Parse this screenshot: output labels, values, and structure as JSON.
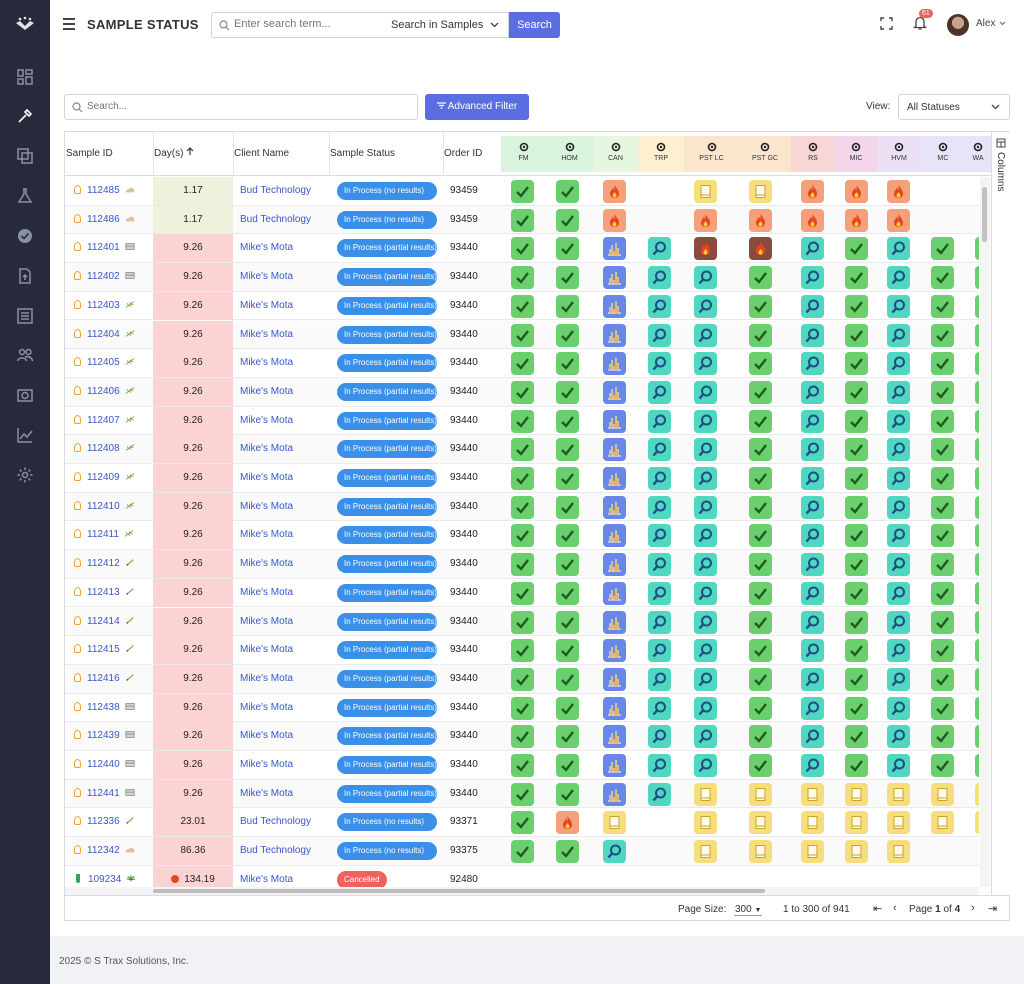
{
  "app": {
    "title": "SAMPLE STATUS"
  },
  "header": {
    "search_placeholder": "Enter search term...",
    "scope_label": "Search in Samples",
    "search_button": "Search",
    "notification_count": "61",
    "user_name": "Alex"
  },
  "sidebar": {
    "items": [
      "dashboard",
      "pipette",
      "copy",
      "flask",
      "badge-check",
      "document-upload",
      "list",
      "users",
      "camera",
      "chart",
      "settings"
    ]
  },
  "toolbar": {
    "search_placeholder": "Search...",
    "advanced_filter": "Advanced Filter",
    "view_label": "View:",
    "view_value": "All Statuses"
  },
  "grid": {
    "headers": {
      "sample_id": "Sample ID",
      "days": "Day(s)",
      "client": "Client Name",
      "status": "Sample Status",
      "order": "Order ID"
    },
    "test_columns": [
      {
        "label": "FM",
        "color": "#d9f3dc"
      },
      {
        "label": "HOM",
        "color": "#d9f3dc"
      },
      {
        "label": "CAN",
        "color": "#e4f5e0"
      },
      {
        "label": "TRP",
        "color": "#fdf0d0"
      },
      {
        "label": "PST LC",
        "color": "#fbe5cc"
      },
      {
        "label": "PST GC",
        "color": "#fbe5cc"
      },
      {
        "label": "RS",
        "color": "#f9d6d6"
      },
      {
        "label": "MIC",
        "color": "#f4d6ea"
      },
      {
        "label": "HVM",
        "color": "#ece0f4"
      },
      {
        "label": "MC",
        "color": "#e6e4f6"
      },
      {
        "label": "WA",
        "color": "#e6e4f6"
      }
    ],
    "columns_label": "Columns",
    "rows": [
      {
        "id": "112485",
        "type": "cloud",
        "days": "1.17",
        "dayclr": "#eef2dc",
        "client": "Bud Technology",
        "status": "In Process (no results)",
        "order": "93459",
        "tiles": [
          "g",
          "g",
          "o",
          "",
          "y",
          "y",
          "o",
          "o",
          "o",
          "",
          ""
        ]
      },
      {
        "id": "112486",
        "type": "cloud",
        "days": "1.17",
        "dayclr": "#eef2dc",
        "client": "Bud Technology",
        "status": "In Process (no results)",
        "order": "93459",
        "tiles": [
          "g",
          "g",
          "o",
          "",
          "o",
          "o",
          "o",
          "o",
          "o",
          "",
          ""
        ]
      },
      {
        "id": "112401",
        "type": "box",
        "days": "9.26",
        "dayclr": "#fcd3d3",
        "client": "Mike's Mota",
        "status": "In Process (partial results)",
        "order": "93440",
        "tiles": [
          "g",
          "g",
          "b",
          "t",
          "d",
          "d",
          "t",
          "g",
          "t",
          "g",
          "g"
        ]
      },
      {
        "id": "112402",
        "type": "box",
        "days": "9.26",
        "dayclr": "#fcd3d3",
        "client": "Mike's Mota",
        "status": "In Process (partial results)",
        "order": "93440",
        "tiles": [
          "g",
          "g",
          "b",
          "t",
          "t",
          "g",
          "t",
          "g",
          "t",
          "g",
          "g"
        ]
      },
      {
        "id": "112403",
        "type": "herb",
        "days": "9.26",
        "dayclr": "#fcd3d3",
        "client": "Mike's Mota",
        "status": "In Process (partial results)",
        "order": "93440",
        "tiles": [
          "g",
          "g",
          "b",
          "t",
          "t",
          "g",
          "t",
          "g",
          "t",
          "g",
          "g"
        ]
      },
      {
        "id": "112404",
        "type": "herb",
        "days": "9.26",
        "dayclr": "#fcd3d3",
        "client": "Mike's Mota",
        "status": "In Process (partial results)",
        "order": "93440",
        "tiles": [
          "g",
          "g",
          "b",
          "t",
          "t",
          "g",
          "t",
          "g",
          "t",
          "g",
          "g"
        ]
      },
      {
        "id": "112405",
        "type": "herb",
        "days": "9.26",
        "dayclr": "#fcd3d3",
        "client": "Mike's Mota",
        "status": "In Process (partial results)",
        "order": "93440",
        "tiles": [
          "g",
          "g",
          "b",
          "t",
          "t",
          "g",
          "t",
          "g",
          "t",
          "g",
          "g"
        ]
      },
      {
        "id": "112406",
        "type": "herb",
        "days": "9.26",
        "dayclr": "#fcd3d3",
        "client": "Mike's Mota",
        "status": "In Process (partial results)",
        "order": "93440",
        "tiles": [
          "g",
          "g",
          "b",
          "t",
          "t",
          "g",
          "t",
          "g",
          "t",
          "g",
          "g"
        ]
      },
      {
        "id": "112407",
        "type": "herb",
        "days": "9.26",
        "dayclr": "#fcd3d3",
        "client": "Mike's Mota",
        "status": "In Process (partial results)",
        "order": "93440",
        "tiles": [
          "g",
          "g",
          "b",
          "t",
          "t",
          "g",
          "t",
          "g",
          "t",
          "g",
          "g"
        ]
      },
      {
        "id": "112408",
        "type": "herb",
        "days": "9.26",
        "dayclr": "#fcd3d3",
        "client": "Mike's Mota",
        "status": "In Process (partial results)",
        "order": "93440",
        "tiles": [
          "g",
          "g",
          "b",
          "t",
          "t",
          "g",
          "t",
          "g",
          "t",
          "g",
          "g"
        ]
      },
      {
        "id": "112409",
        "type": "herb",
        "days": "9.26",
        "dayclr": "#fcd3d3",
        "client": "Mike's Mota",
        "status": "In Process (partial results)",
        "order": "93440",
        "tiles": [
          "g",
          "g",
          "b",
          "t",
          "t",
          "g",
          "t",
          "g",
          "t",
          "g",
          "g"
        ]
      },
      {
        "id": "112410",
        "type": "herb",
        "days": "9.26",
        "dayclr": "#fcd3d3",
        "client": "Mike's Mota",
        "status": "In Process (partial results)",
        "order": "93440",
        "tiles": [
          "g",
          "g",
          "b",
          "t",
          "t",
          "g",
          "t",
          "g",
          "t",
          "g",
          "g"
        ]
      },
      {
        "id": "112411",
        "type": "herb",
        "days": "9.26",
        "dayclr": "#fcd3d3",
        "client": "Mike's Mota",
        "status": "In Process (partial results)",
        "order": "93440",
        "tiles": [
          "g",
          "g",
          "b",
          "t",
          "t",
          "g",
          "t",
          "g",
          "t",
          "g",
          "g"
        ]
      },
      {
        "id": "112412",
        "type": "pen",
        "days": "9.26",
        "dayclr": "#fcd3d3",
        "client": "Mike's Mota",
        "status": "In Process (partial results)",
        "order": "93440",
        "tiles": [
          "g",
          "g",
          "b",
          "t",
          "t",
          "g",
          "t",
          "g",
          "t",
          "g",
          "g"
        ]
      },
      {
        "id": "112413",
        "type": "pen",
        "days": "9.26",
        "dayclr": "#fcd3d3",
        "client": "Mike's Mota",
        "status": "In Process (partial results)",
        "order": "93440",
        "tiles": [
          "g",
          "g",
          "b",
          "t",
          "t",
          "g",
          "t",
          "g",
          "t",
          "g",
          "g"
        ]
      },
      {
        "id": "112414",
        "type": "pen",
        "days": "9.26",
        "dayclr": "#fcd3d3",
        "client": "Mike's Mota",
        "status": "In Process (partial results)",
        "order": "93440",
        "tiles": [
          "g",
          "g",
          "b",
          "t",
          "t",
          "g",
          "t",
          "g",
          "t",
          "g",
          "g"
        ]
      },
      {
        "id": "112415",
        "type": "pen",
        "days": "9.26",
        "dayclr": "#fcd3d3",
        "client": "Mike's Mota",
        "status": "In Process (partial results)",
        "order": "93440",
        "tiles": [
          "g",
          "g",
          "b",
          "t",
          "t",
          "g",
          "t",
          "g",
          "t",
          "g",
          "g"
        ]
      },
      {
        "id": "112416",
        "type": "pen",
        "days": "9.26",
        "dayclr": "#fcd3d3",
        "client": "Mike's Mota",
        "status": "In Process (partial results)",
        "order": "93440",
        "tiles": [
          "g",
          "g",
          "b",
          "t",
          "t",
          "g",
          "t",
          "g",
          "t",
          "g",
          "g"
        ]
      },
      {
        "id": "112438",
        "type": "box",
        "days": "9.26",
        "dayclr": "#fcd3d3",
        "client": "Mike's Mota",
        "status": "In Process (partial results)",
        "order": "93440",
        "tiles": [
          "g",
          "g",
          "b",
          "t",
          "t",
          "g",
          "t",
          "g",
          "t",
          "g",
          "g"
        ]
      },
      {
        "id": "112439",
        "type": "box",
        "days": "9.26",
        "dayclr": "#fcd3d3",
        "client": "Mike's Mota",
        "status": "In Process (partial results)",
        "order": "93440",
        "tiles": [
          "g",
          "g",
          "b",
          "t",
          "t",
          "g",
          "t",
          "g",
          "t",
          "g",
          "g"
        ]
      },
      {
        "id": "112440",
        "type": "box",
        "days": "9.26",
        "dayclr": "#fcd3d3",
        "client": "Mike's Mota",
        "status": "In Process (partial results)",
        "order": "93440",
        "tiles": [
          "g",
          "g",
          "b",
          "t",
          "t",
          "g",
          "t",
          "g",
          "t",
          "g",
          "g"
        ]
      },
      {
        "id": "112441",
        "type": "box",
        "days": "9.26",
        "dayclr": "#fcd3d3",
        "client": "Mike's Mota",
        "status": "In Process (partial results)",
        "order": "93440",
        "tiles": [
          "g",
          "g",
          "b",
          "t",
          "y",
          "y",
          "y",
          "y",
          "y",
          "y",
          "y"
        ]
      },
      {
        "id": "112336",
        "type": "pen",
        "days": "23.01",
        "dayclr": "#fcd3d3",
        "client": "Bud Technology",
        "status": "In Process (no results)",
        "order": "93371",
        "tiles": [
          "g",
          "o",
          "y",
          "",
          "y",
          "y",
          "y",
          "y",
          "y",
          "y",
          "y"
        ]
      },
      {
        "id": "112342",
        "type": "cloud",
        "days": "86.36",
        "dayclr": "#fcd3d3",
        "client": "Bud Technology",
        "status": "In Process (no results)",
        "order": "93375",
        "tiles": [
          "g",
          "g",
          "t",
          "",
          "y",
          "y",
          "y",
          "y",
          "y",
          "",
          ""
        ]
      },
      {
        "id": "109234",
        "type": "leaf",
        "days": "134.19",
        "dayclr": "#fcd3d3",
        "client": "Mike's Mota",
        "status": "Cancelled",
        "order": "92480",
        "tiles": [
          "",
          "",
          "",
          "",
          "",
          "",
          "",
          "",
          "",
          "",
          ""
        ]
      }
    ]
  },
  "pager": {
    "page_size_label": "Page Size:",
    "page_size": "300",
    "range": "1 to 300 of 941",
    "page_text": "Page",
    "page_current": "1",
    "page_of": "of",
    "page_total": "4"
  },
  "footer": {
    "copyright": "2025 © S Trax Solutions, Inc."
  },
  "colors": {
    "sidebar": "#262a3b",
    "accent": "#5b6ee1",
    "pill_blue": "#3a8fe8",
    "pill_red": "#f0605d"
  }
}
